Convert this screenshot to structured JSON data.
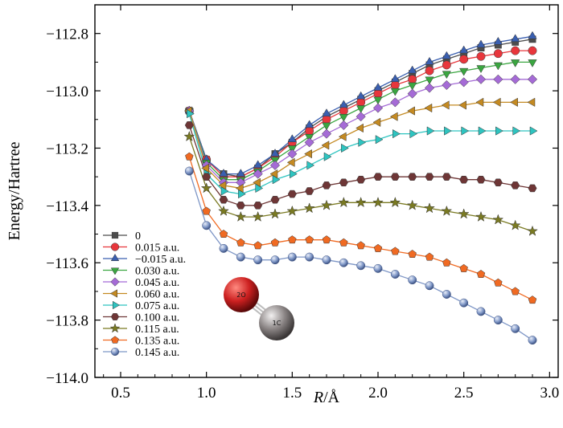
{
  "chart_data": {
    "type": "line",
    "xlabel_italic": "R",
    "xlabel_rest": "/Å",
    "ylabel": "Energy/Hartree",
    "xlim": [
      0.35,
      3.05
    ],
    "ylim": [
      -114.0,
      -112.7
    ],
    "xticks": [
      0.5,
      1.0,
      1.5,
      2.0,
      2.5,
      3.0
    ],
    "xtick_labels": [
      "0.5",
      "1.0",
      "1.5",
      "2.0",
      "2.5",
      "3.0"
    ],
    "yticks": [
      -114.0,
      -113.8,
      -113.6,
      -113.4,
      -113.2,
      -113.0,
      -112.8
    ],
    "ytick_labels": [
      "−114.0",
      "−113.8",
      "−113.6",
      "−113.4",
      "−113.2",
      "−113.0",
      "−112.8"
    ],
    "legend_position": "bottom-left",
    "x": [
      0.9,
      1.0,
      1.1,
      1.2,
      1.3,
      1.4,
      1.5,
      1.6,
      1.7,
      1.8,
      1.9,
      2.0,
      2.1,
      2.2,
      2.3,
      2.4,
      2.5,
      2.6,
      2.7,
      2.8,
      2.9
    ],
    "series": [
      {
        "name": "0",
        "color": "#4d4d4d",
        "marker": "square",
        "values": [
          -113.07,
          -113.24,
          -113.29,
          -113.3,
          -113.27,
          -113.22,
          -113.18,
          -113.13,
          -113.09,
          -113.06,
          -113.03,
          -113.0,
          -112.97,
          -112.94,
          -112.91,
          -112.89,
          -112.87,
          -112.85,
          -112.84,
          -112.83,
          -112.82
        ]
      },
      {
        "name": "0.015  a.u.",
        "color": "#e8363c",
        "marker": "circle",
        "values": [
          -113.07,
          -113.24,
          -113.3,
          -113.3,
          -113.27,
          -113.23,
          -113.18,
          -113.14,
          -113.1,
          -113.07,
          -113.04,
          -113.01,
          -112.98,
          -112.96,
          -112.93,
          -112.91,
          -112.89,
          -112.88,
          -112.87,
          -112.86,
          -112.86
        ]
      },
      {
        "name": "−0.015  a.u.",
        "color": "#3a5fb0",
        "marker": "triangle-up",
        "values": [
          -113.07,
          -113.24,
          -113.29,
          -113.29,
          -113.26,
          -113.22,
          -113.17,
          -113.12,
          -113.08,
          -113.05,
          -113.02,
          -112.99,
          -112.96,
          -112.93,
          -112.9,
          -112.88,
          -112.86,
          -112.84,
          -112.83,
          -112.82,
          -112.81
        ]
      },
      {
        "name": "0.030  a.u.",
        "color": "#3aa640",
        "marker": "triangle-down",
        "values": [
          -113.07,
          -113.25,
          -113.31,
          -113.31,
          -113.28,
          -113.24,
          -113.2,
          -113.16,
          -113.12,
          -113.09,
          -113.06,
          -113.03,
          -113.0,
          -112.98,
          -112.96,
          -112.94,
          -112.93,
          -112.92,
          -112.91,
          -112.9,
          -112.9
        ]
      },
      {
        "name": "0.045  a.u.",
        "color": "#a56bd6",
        "marker": "diamond",
        "values": [
          -113.07,
          -113.26,
          -113.32,
          -113.32,
          -113.29,
          -113.26,
          -113.22,
          -113.18,
          -113.15,
          -113.12,
          -113.09,
          -113.06,
          -113.04,
          -113.01,
          -112.99,
          -112.98,
          -112.97,
          -112.96,
          -112.96,
          -112.96,
          -112.96
        ]
      },
      {
        "name": "0.060  a.u.",
        "color": "#c48a22",
        "marker": "triangle-left",
        "values": [
          -113.07,
          -113.27,
          -113.33,
          -113.34,
          -113.32,
          -113.29,
          -113.25,
          -113.22,
          -113.19,
          -113.16,
          -113.13,
          -113.11,
          -113.09,
          -113.07,
          -113.06,
          -113.05,
          -113.05,
          -113.04,
          -113.04,
          -113.04,
          -113.04
        ]
      },
      {
        "name": "0.075  a.u.",
        "color": "#2ec4c0",
        "marker": "triangle-right",
        "values": [
          -113.08,
          -113.29,
          -113.35,
          -113.36,
          -113.34,
          -113.31,
          -113.29,
          -113.26,
          -113.23,
          -113.2,
          -113.18,
          -113.17,
          -113.15,
          -113.15,
          -113.14,
          -113.14,
          -113.14,
          -113.14,
          -113.14,
          -113.14,
          -113.14
        ]
      },
      {
        "name": "0.100  a.u.",
        "color": "#6e3636",
        "marker": "hexagon",
        "values": [
          -113.12,
          -113.3,
          -113.38,
          -113.4,
          -113.4,
          -113.38,
          -113.36,
          -113.35,
          -113.33,
          -113.32,
          -113.31,
          -113.3,
          -113.3,
          -113.3,
          -113.3,
          -113.3,
          -113.31,
          -113.31,
          -113.32,
          -113.33,
          -113.34
        ]
      },
      {
        "name": "0.115  a.u.",
        "color": "#7a7a22",
        "marker": "star",
        "values": [
          -113.16,
          -113.34,
          -113.42,
          -113.44,
          -113.44,
          -113.43,
          -113.42,
          -113.41,
          -113.4,
          -113.39,
          -113.39,
          -113.39,
          -113.39,
          -113.4,
          -113.41,
          -113.42,
          -113.43,
          -113.44,
          -113.45,
          -113.47,
          -113.49
        ]
      },
      {
        "name": "0.135  a.u.",
        "color": "#f06a22",
        "marker": "pentagon",
        "values": [
          -113.23,
          -113.42,
          -113.5,
          -113.53,
          -113.54,
          -113.53,
          -113.52,
          -113.52,
          -113.52,
          -113.53,
          -113.54,
          -113.55,
          -113.56,
          -113.57,
          -113.58,
          -113.6,
          -113.62,
          -113.64,
          -113.67,
          -113.7,
          -113.73
        ]
      },
      {
        "name": "0.145  a.u.",
        "color": "#7e96c6",
        "marker": "sphere",
        "values": [
          -113.28,
          -113.47,
          -113.55,
          -113.58,
          -113.59,
          -113.59,
          -113.58,
          -113.58,
          -113.59,
          -113.6,
          -113.61,
          -113.62,
          -113.64,
          -113.66,
          -113.68,
          -113.71,
          -113.74,
          -113.77,
          -113.8,
          -113.83,
          -113.87
        ]
      }
    ],
    "molecule": {
      "atoms": [
        {
          "label": "2O",
          "color": "#cc2020"
        },
        {
          "label": "1C",
          "color": "#8a8484"
        }
      ]
    }
  }
}
